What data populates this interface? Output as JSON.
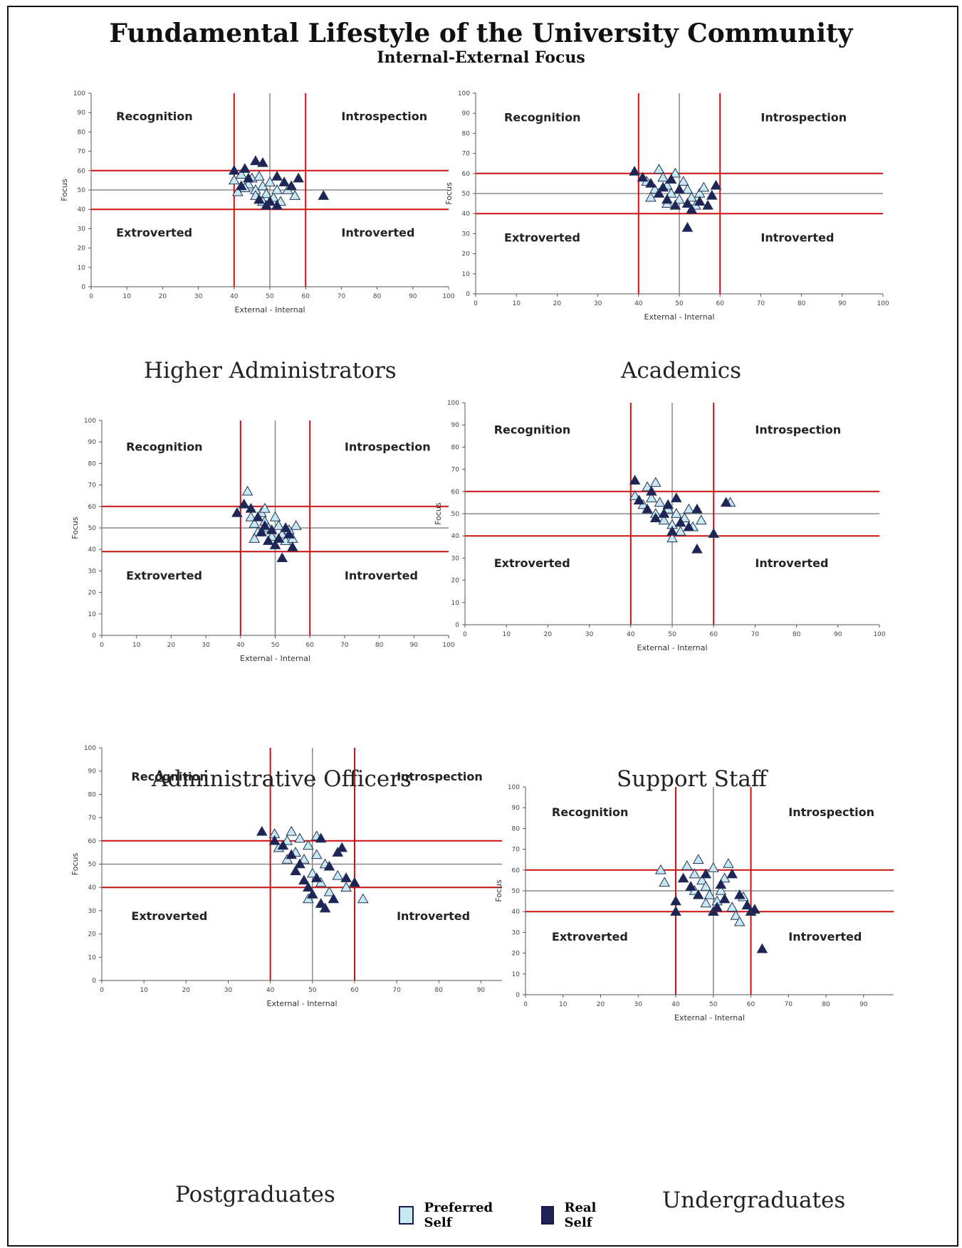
{
  "title": "Fundamental Lifestyle of the University Community",
  "subtitle": "Internal-External Focus",
  "legend": [
    {
      "label": "Preferred Self",
      "color": "#c8e8f4"
    },
    {
      "label": "Real Self",
      "color": "#1f2458"
    }
  ],
  "colors": {
    "preferred_fill": "#c8e8f4",
    "preferred_stroke": "#223355",
    "real_fill": "#1f2458",
    "threshold_line": "#cc1111",
    "center_line": "#888888"
  },
  "chart_data": [
    {
      "type": "scatter",
      "title": "Higher Administrators",
      "xlabel": "External - Internal",
      "ylabel": "Focus",
      "xlim": [
        0,
        100
      ],
      "ylim": [
        0,
        100
      ],
      "xticks": [
        0,
        10,
        20,
        30,
        40,
        50,
        60,
        70,
        80,
        90,
        100
      ],
      "yticks": [
        0,
        10,
        20,
        30,
        40,
        50,
        60,
        70,
        80,
        90,
        100
      ],
      "thresholds": {
        "x": [
          40,
          60
        ],
        "y": [
          40,
          60
        ]
      },
      "quadrants": [
        "Recognition",
        "Introspection",
        "Extroverted",
        "Introverted"
      ],
      "series": [
        {
          "name": "Preferred Self",
          "points": [
            [
              40,
              55
            ],
            [
              42,
              58
            ],
            [
              44,
              53
            ],
            [
              45,
              56
            ],
            [
              46,
              50
            ],
            [
              47,
              57
            ],
            [
              48,
              52
            ],
            [
              49,
              48
            ],
            [
              50,
              54
            ],
            [
              51,
              46
            ],
            [
              52,
              50
            ],
            [
              43,
              51
            ],
            [
              46,
              47
            ],
            [
              48,
              44
            ],
            [
              57,
              47
            ],
            [
              55,
              50
            ],
            [
              53,
              44
            ],
            [
              41,
              49
            ]
          ]
        },
        {
          "name": "Real Self",
          "points": [
            [
              40,
              60
            ],
            [
              43,
              61
            ],
            [
              46,
              65
            ],
            [
              48,
              64
            ],
            [
              52,
              57
            ],
            [
              54,
              54
            ],
            [
              58,
              56
            ],
            [
              65,
              47
            ],
            [
              50,
              44
            ],
            [
              49,
              42
            ],
            [
              47,
              45
            ],
            [
              52,
              42
            ],
            [
              44,
              56
            ],
            [
              42,
              52
            ],
            [
              56,
              52
            ]
          ]
        }
      ]
    },
    {
      "type": "scatter",
      "title": "Academics",
      "xlabel": "External - Internal",
      "ylabel": "Focus",
      "xlim": [
        0,
        100
      ],
      "ylim": [
        0,
        100
      ],
      "xticks": [
        0,
        10,
        20,
        30,
        40,
        50,
        60,
        70,
        80,
        90,
        100
      ],
      "yticks": [
        0,
        10,
        20,
        30,
        40,
        50,
        60,
        70,
        80,
        90,
        100
      ],
      "thresholds": {
        "x": [
          40,
          60
        ],
        "y": [
          40,
          60
        ]
      },
      "quadrants": [
        "Recognition",
        "Introspection",
        "Extroverted",
        "Introverted"
      ],
      "series": [
        {
          "name": "Preferred Self",
          "points": [
            [
              42,
              56
            ],
            [
              44,
              52
            ],
            [
              45,
              62
            ],
            [
              46,
              58
            ],
            [
              47,
              54
            ],
            [
              48,
              50
            ],
            [
              50,
              47
            ],
            [
              51,
              56
            ],
            [
              52,
              52
            ],
            [
              53,
              48
            ],
            [
              54,
              44
            ],
            [
              55,
              50
            ],
            [
              43,
              48
            ],
            [
              47,
              45
            ],
            [
              49,
              60
            ],
            [
              56,
              53
            ]
          ]
        },
        {
          "name": "Real Self",
          "points": [
            [
              39,
              61
            ],
            [
              41,
              58
            ],
            [
              43,
              55
            ],
            [
              45,
              50
            ],
            [
              47,
              47
            ],
            [
              49,
              44
            ],
            [
              50,
              52
            ],
            [
              52,
              45
            ],
            [
              53,
              42
            ],
            [
              55,
              46
            ],
            [
              57,
              44
            ],
            [
              58,
              49
            ],
            [
              59,
              54
            ],
            [
              52,
              33
            ],
            [
              48,
              57
            ],
            [
              46,
              53
            ]
          ]
        }
      ]
    },
    {
      "type": "scatter",
      "title": "Administrative Officers",
      "xlabel": "External - Internal",
      "ylabel": "Focus",
      "xlim": [
        0,
        100
      ],
      "ylim": [
        0,
        100
      ],
      "xticks": [
        0,
        10,
        20,
        30,
        40,
        50,
        60,
        70,
        80,
        90,
        100
      ],
      "yticks": [
        0,
        10,
        20,
        30,
        40,
        50,
        60,
        70,
        80,
        90,
        100
      ],
      "thresholds": {
        "x": [
          40,
          60
        ],
        "y": [
          39,
          60
        ]
      },
      "quadrants": [
        "Recognition",
        "Introspection",
        "Extroverted",
        "Introverted"
      ],
      "series": [
        {
          "name": "Preferred Self",
          "points": [
            [
              42,
              67
            ],
            [
              43,
              55
            ],
            [
              44,
              52
            ],
            [
              45,
              48
            ],
            [
              46,
              57
            ],
            [
              47,
              53
            ],
            [
              48,
              50
            ],
            [
              49,
              46
            ],
            [
              50,
              55
            ],
            [
              51,
              51
            ],
            [
              52,
              47
            ],
            [
              53,
              44
            ],
            [
              54,
              49
            ],
            [
              55,
              45
            ],
            [
              56,
              51
            ],
            [
              47,
              59
            ],
            [
              44,
              45
            ]
          ]
        },
        {
          "name": "Real Self",
          "points": [
            [
              39,
              57
            ],
            [
              41,
              61
            ],
            [
              43,
              59
            ],
            [
              45,
              55
            ],
            [
              47,
              51
            ],
            [
              48,
              44
            ],
            [
              50,
              42
            ],
            [
              52,
              36
            ],
            [
              54,
              47
            ],
            [
              55,
              41
            ],
            [
              49,
              49
            ],
            [
              51,
              45
            ],
            [
              53,
              50
            ],
            [
              46,
              48
            ]
          ]
        }
      ]
    },
    {
      "type": "scatter",
      "title": "Support Staff",
      "xlabel": "External - Internal",
      "ylabel": "Focus",
      "xlim": [
        0,
        100
      ],
      "ylim": [
        0,
        100
      ],
      "xticks": [
        0,
        10,
        20,
        30,
        40,
        50,
        60,
        70,
        80,
        90,
        100
      ],
      "yticks": [
        0,
        10,
        20,
        30,
        40,
        50,
        60,
        70,
        80,
        90,
        100
      ],
      "thresholds": {
        "x": [
          40,
          60
        ],
        "y": [
          40,
          60
        ]
      },
      "quadrants": [
        "Recognition",
        "Introspection",
        "Extroverted",
        "Introverted"
      ],
      "series": [
        {
          "name": "Preferred Self",
          "points": [
            [
              41,
              58
            ],
            [
              43,
              54
            ],
            [
              44,
              62
            ],
            [
              45,
              57
            ],
            [
              46,
              50
            ],
            [
              47,
              55
            ],
            [
              48,
              47
            ],
            [
              49,
              52
            ],
            [
              50,
              45
            ],
            [
              51,
              50
            ],
            [
              52,
              42
            ],
            [
              53,
              48
            ],
            [
              55,
              44
            ],
            [
              57,
              47
            ],
            [
              64,
              55
            ],
            [
              50,
              39
            ],
            [
              46,
              64
            ],
            [
              54,
              52
            ]
          ]
        },
        {
          "name": "Real Self",
          "points": [
            [
              41,
              65
            ],
            [
              42,
              56
            ],
            [
              44,
              52
            ],
            [
              46,
              48
            ],
            [
              48,
              50
            ],
            [
              50,
              42
            ],
            [
              52,
              46
            ],
            [
              54,
              44
            ],
            [
              56,
              52
            ],
            [
              56,
              34
            ],
            [
              60,
              41
            ],
            [
              63,
              55
            ],
            [
              45,
              60
            ],
            [
              49,
              54
            ],
            [
              51,
              57
            ]
          ]
        }
      ]
    },
    {
      "type": "scatter",
      "title": "Postgraduates",
      "xlabel": "External - Internal",
      "ylabel": "Focus",
      "xlim": [
        0,
        95
      ],
      "ylim": [
        0,
        100
      ],
      "xticks": [
        0,
        10,
        20,
        30,
        40,
        50,
        60,
        70,
        80,
        90
      ],
      "yticks": [
        0,
        10,
        20,
        30,
        40,
        50,
        60,
        70,
        80,
        90,
        100
      ],
      "thresholds": {
        "x": [
          40,
          60
        ],
        "y": [
          40,
          60
        ]
      },
      "quadrants": [
        "Recognition",
        "Introspection",
        "Extroverted",
        "Introverted"
      ],
      "series": [
        {
          "name": "Preferred Self",
          "points": [
            [
              41,
              63
            ],
            [
              42,
              57
            ],
            [
              44,
              60
            ],
            [
              45,
              64
            ],
            [
              46,
              55
            ],
            [
              47,
              61
            ],
            [
              48,
              52
            ],
            [
              49,
              58
            ],
            [
              50,
              46
            ],
            [
              51,
              54
            ],
            [
              52,
              42
            ],
            [
              53,
              50
            ],
            [
              54,
              38
            ],
            [
              56,
              45
            ],
            [
              58,
              40
            ],
            [
              62,
              35
            ],
            [
              49,
              35
            ],
            [
              44,
              52
            ],
            [
              51,
              62
            ]
          ]
        },
        {
          "name": "Real Self",
          "points": [
            [
              38,
              64
            ],
            [
              41,
              60
            ],
            [
              43,
              58
            ],
            [
              45,
              54
            ],
            [
              46,
              47
            ],
            [
              48,
              43
            ],
            [
              49,
              40
            ],
            [
              50,
              37
            ],
            [
              51,
              44
            ],
            [
              52,
              33
            ],
            [
              53,
              31
            ],
            [
              54,
              49
            ],
            [
              55,
              35
            ],
            [
              56,
              55
            ],
            [
              57,
              57
            ],
            [
              58,
              44
            ],
            [
              60,
              42
            ],
            [
              52,
              61
            ],
            [
              47,
              50
            ]
          ]
        }
      ]
    },
    {
      "type": "scatter",
      "title": "Undergraduates",
      "xlabel": "External - Internal",
      "ylabel": "Focus",
      "xlim": [
        0,
        98
      ],
      "ylim": [
        0,
        100
      ],
      "xticks": [
        0,
        10,
        20,
        30,
        40,
        50,
        60,
        70,
        80,
        90
      ],
      "yticks": [
        0,
        10,
        20,
        30,
        40,
        50,
        60,
        70,
        80,
        90,
        100
      ],
      "thresholds": {
        "x": [
          40,
          60
        ],
        "y": [
          40,
          60
        ]
      },
      "quadrants": [
        "Recognition",
        "Introspection",
        "Extroverted",
        "Introverted"
      ],
      "series": [
        {
          "name": "Preferred Self",
          "points": [
            [
              36,
              60
            ],
            [
              37,
              54
            ],
            [
              43,
              62
            ],
            [
              45,
              58
            ],
            [
              46,
              65
            ],
            [
              47,
              55
            ],
            [
              48,
              52
            ],
            [
              49,
              48
            ],
            [
              50,
              61
            ],
            [
              51,
              45
            ],
            [
              52,
              50
            ],
            [
              53,
              56
            ],
            [
              54,
              63
            ],
            [
              55,
              42
            ],
            [
              56,
              38
            ],
            [
              57,
              35
            ],
            [
              58,
              47
            ],
            [
              45,
              50
            ],
            [
              48,
              44
            ]
          ]
        },
        {
          "name": "Real Self",
          "points": [
            [
              40,
              45
            ],
            [
              40,
              40
            ],
            [
              42,
              56
            ],
            [
              44,
              52
            ],
            [
              46,
              48
            ],
            [
              48,
              58
            ],
            [
              50,
              40
            ],
            [
              52,
              53
            ],
            [
              53,
              46
            ],
            [
              55,
              58
            ],
            [
              57,
              48
            ],
            [
              59,
              43
            ],
            [
              60,
              40
            ],
            [
              61,
              41
            ],
            [
              63,
              22
            ],
            [
              51,
              42
            ]
          ]
        }
      ]
    }
  ],
  "panel_captions": [
    "Higher Administrators",
    "Academics",
    "Administrative Officers",
    "Support Staff",
    "Postgraduates",
    "Undergraduates"
  ]
}
